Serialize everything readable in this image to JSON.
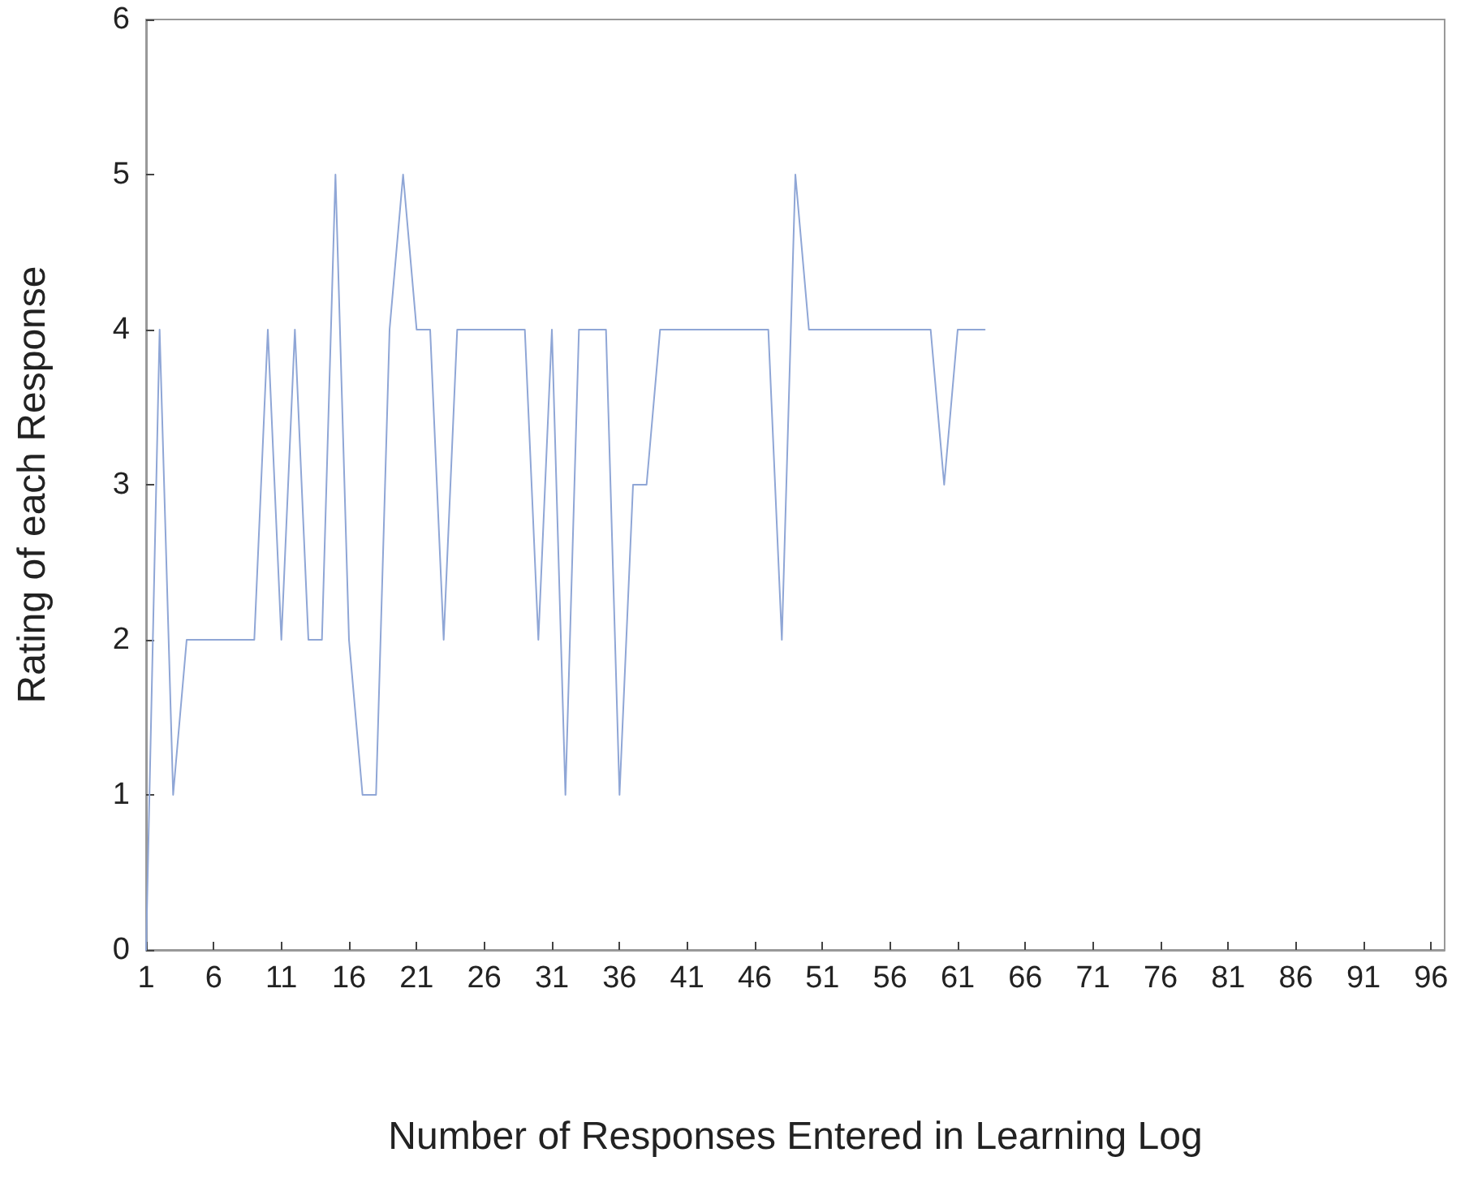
{
  "chart_data": {
    "type": "line",
    "xlabel": "Number of Responses Entered in Learning Log",
    "ylabel": "Rating of each Response",
    "x": [
      1,
      2,
      3,
      4,
      5,
      6,
      7,
      8,
      9,
      10,
      11,
      12,
      13,
      14,
      15,
      16,
      17,
      18,
      19,
      20,
      21,
      22,
      23,
      24,
      25,
      26,
      27,
      28,
      29,
      30,
      31,
      32,
      33,
      34,
      35,
      36,
      37,
      38,
      39,
      40,
      41,
      42,
      43,
      44,
      45,
      46,
      47,
      48,
      49,
      50,
      51,
      52,
      53,
      54,
      55,
      56,
      57,
      58,
      59,
      60,
      61,
      62,
      63
    ],
    "series": [
      {
        "color": "#8fa6d6",
        "values": [
          0,
          4,
          1,
          2,
          2,
          2,
          2,
          2,
          2,
          4,
          2,
          4,
          2,
          2,
          5,
          2,
          1,
          1,
          4,
          5,
          4,
          4,
          2,
          4,
          4,
          4,
          4,
          4,
          4,
          2,
          4,
          1,
          4,
          4,
          4,
          1,
          3,
          3,
          4,
          4,
          4,
          4,
          4,
          4,
          4,
          4,
          4,
          2,
          5,
          4,
          4,
          4,
          4,
          4,
          4,
          4,
          4,
          4,
          4,
          3,
          4,
          4,
          4
        ]
      }
    ],
    "xlim": [
      1,
      97
    ],
    "xticks": [
      1,
      6,
      11,
      16,
      21,
      26,
      31,
      36,
      41,
      46,
      51,
      56,
      61,
      66,
      71,
      76,
      81,
      86,
      91,
      96
    ],
    "ylim": [
      0,
      6
    ],
    "yticks": [
      0,
      1,
      2,
      3,
      4,
      5,
      6
    ],
    "grid": false,
    "marker": "none",
    "line_style": "solid"
  }
}
